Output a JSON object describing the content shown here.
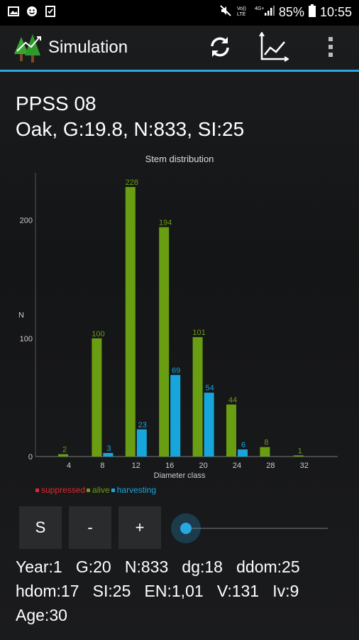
{
  "status_bar": {
    "battery": "85%",
    "time": "10:55",
    "icons": [
      "image-icon",
      "smiley-icon",
      "checklist-icon",
      "mute-icon",
      "volte-icon",
      "4g-signal-icon",
      "battery-icon"
    ]
  },
  "app_bar": {
    "title": "Simulation",
    "logo": "trees-logo-icon",
    "actions": [
      "refresh-icon",
      "chart-icon",
      "overflow-menu-icon"
    ]
  },
  "heading": {
    "line1": "PPSS 08",
    "line2": "Oak, G:19.8, N:833, SI:25"
  },
  "chart_data": {
    "type": "bar",
    "title": "Stem distribution",
    "xlabel": "Diameter class",
    "ylabel": "N",
    "ylim": [
      0,
      240
    ],
    "y_ticks": [
      0,
      100,
      200
    ],
    "categories": [
      "4",
      "8",
      "12",
      "16",
      "20",
      "24",
      "28",
      "32"
    ],
    "series": [
      {
        "name": "suppressed",
        "color": "#e0282e",
        "values": [
          0,
          0,
          0,
          0,
          0,
          0,
          0,
          0
        ]
      },
      {
        "name": "alive",
        "color": "#6a9e12",
        "values": [
          2,
          100,
          228,
          194,
          101,
          44,
          8,
          1
        ]
      },
      {
        "name": "harvesting",
        "color": "#17a6dc",
        "values": [
          0,
          3,
          23,
          69,
          54,
          6,
          0,
          0
        ]
      }
    ]
  },
  "controls": {
    "s_label": "S",
    "minus_label": "-",
    "plus_label": "+",
    "slider_value": 0
  },
  "stats": {
    "line1": "Year:1   G:20   N:833   dg:18   ddom:25",
    "line2": "hdom:17   SI:25   EN:1,01   V:131   Iv:9",
    "line3": "Age:30"
  }
}
